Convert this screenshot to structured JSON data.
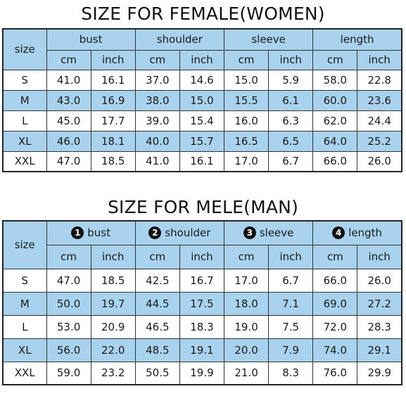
{
  "female": {
    "title": "SIZE FOR FEMALE(WOMEN)",
    "size_label": "size",
    "groups": [
      {
        "label": "bust"
      },
      {
        "label": "shoulder"
      },
      {
        "label": "sleeve"
      },
      {
        "label": "length"
      }
    ],
    "units": [
      "cm",
      "inch",
      "cm",
      "inch",
      "cm",
      "inch",
      "cm",
      "inch"
    ],
    "rows": [
      {
        "size": "S",
        "values": [
          "41.0",
          "16.1",
          "37.0",
          "14.6",
          "15.0",
          "5.9",
          "58.0",
          "22.8"
        ]
      },
      {
        "size": "M",
        "values": [
          "43.0",
          "16.9",
          "38.0",
          "15.0",
          "15.5",
          "6.1",
          "60.0",
          "23.6"
        ]
      },
      {
        "size": "L",
        "values": [
          "45.0",
          "17.7",
          "39.0",
          "15.4",
          "16.0",
          "6.3",
          "62.0",
          "24.4"
        ]
      },
      {
        "size": "XL",
        "values": [
          "46.0",
          "18.1",
          "40.0",
          "15.7",
          "16.5",
          "6.5",
          "64.0",
          "25.2"
        ]
      },
      {
        "size": "XXL",
        "values": [
          "47.0",
          "18.5",
          "41.0",
          "16.1",
          "17.0",
          "6.7",
          "66.0",
          "26.0"
        ]
      }
    ]
  },
  "male": {
    "title": "SIZE FOR MELE(MAN)",
    "size_label": "size",
    "groups": [
      {
        "number": "1",
        "label": "bust"
      },
      {
        "number": "2",
        "label": "shoulder"
      },
      {
        "number": "3",
        "label": "sleeve"
      },
      {
        "number": "4",
        "label": "length"
      }
    ],
    "units": [
      "cm",
      "inch",
      "cm",
      "inch",
      "cm",
      "inch",
      "cm",
      "inch"
    ],
    "rows": [
      {
        "size": "S",
        "values": [
          "47.0",
          "18.5",
          "42.5",
          "16.7",
          "17.0",
          "6.7",
          "66.0",
          "26.0"
        ]
      },
      {
        "size": "M",
        "values": [
          "50.0",
          "19.7",
          "44.5",
          "17.5",
          "18.0",
          "7.1",
          "69.0",
          "27.2"
        ]
      },
      {
        "size": "L",
        "values": [
          "53.0",
          "20.9",
          "46.5",
          "18.3",
          "19.0",
          "7.5",
          "72.0",
          "28.3"
        ]
      },
      {
        "size": "XL",
        "values": [
          "56.0",
          "22.0",
          "48.5",
          "19.1",
          "20.0",
          "7.9",
          "74.0",
          "29.1"
        ]
      },
      {
        "size": "XXL",
        "values": [
          "59.0",
          "23.2",
          "50.5",
          "19.9",
          "21.0",
          "8.3",
          "76.0",
          "29.9"
        ]
      }
    ]
  },
  "colors": {
    "header_blue": "#a9d2ee",
    "border": "#333333",
    "badge": "#111111"
  }
}
